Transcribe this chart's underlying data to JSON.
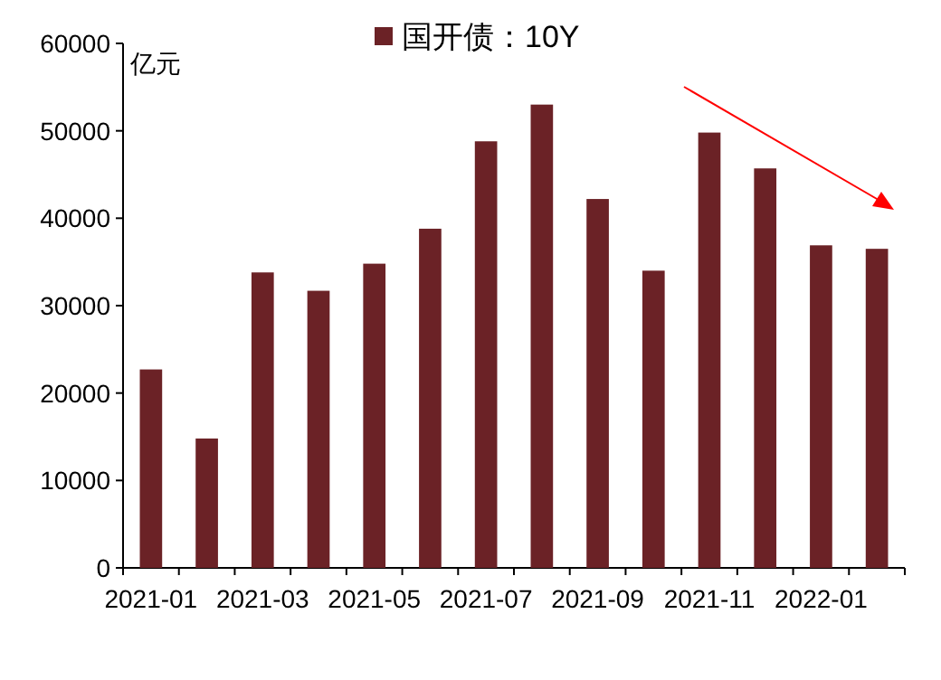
{
  "chart_data": {
    "type": "bar",
    "ylabel": "亿元",
    "legend": "top",
    "categories": [
      "2021-01",
      null,
      "2021-03",
      null,
      "2021-05",
      null,
      "2021-07",
      null,
      "2021-09",
      null,
      "2021-11",
      null,
      "2022-01",
      null
    ],
    "series": [
      {
        "name": "国开债：10Y",
        "color": "#6b2226",
        "values": [
          22700,
          14800,
          33800,
          31700,
          34800,
          38800,
          48800,
          53000,
          42200,
          34000,
          49800,
          45700,
          36900,
          36500
        ]
      }
    ],
    "ylim": [
      0,
      60000
    ],
    "yticks": [
      0,
      10000,
      20000,
      30000,
      40000,
      50000,
      60000
    ]
  }
}
